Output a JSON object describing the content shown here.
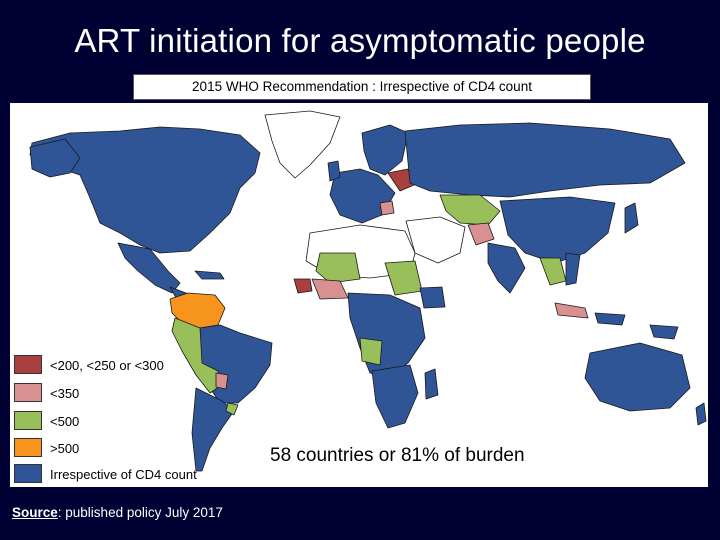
{
  "title": "ART initiation for asymptomatic people",
  "subtitle": "2015 WHO Recommendation : Irrespective of CD4 count",
  "legend": [
    {
      "label": "<200, <250 or <300",
      "color": "#a84040"
    },
    {
      "label": "<350",
      "color": "#d89090"
    },
    {
      "label": "<500",
      "color": "#99bf5a"
    },
    {
      "label": ">500",
      "color": "#f7941d"
    },
    {
      "label": "Irrespective of CD4 count",
      "color": "#2f5597"
    }
  ],
  "burden_text": "58 countries or 81% of burden",
  "source": {
    "label": "Source",
    "text": ": published policy July 2017"
  },
  "colors": {
    "background": "#000033",
    "no_data": "#ffffff",
    "border": "#1a1a1a"
  }
}
